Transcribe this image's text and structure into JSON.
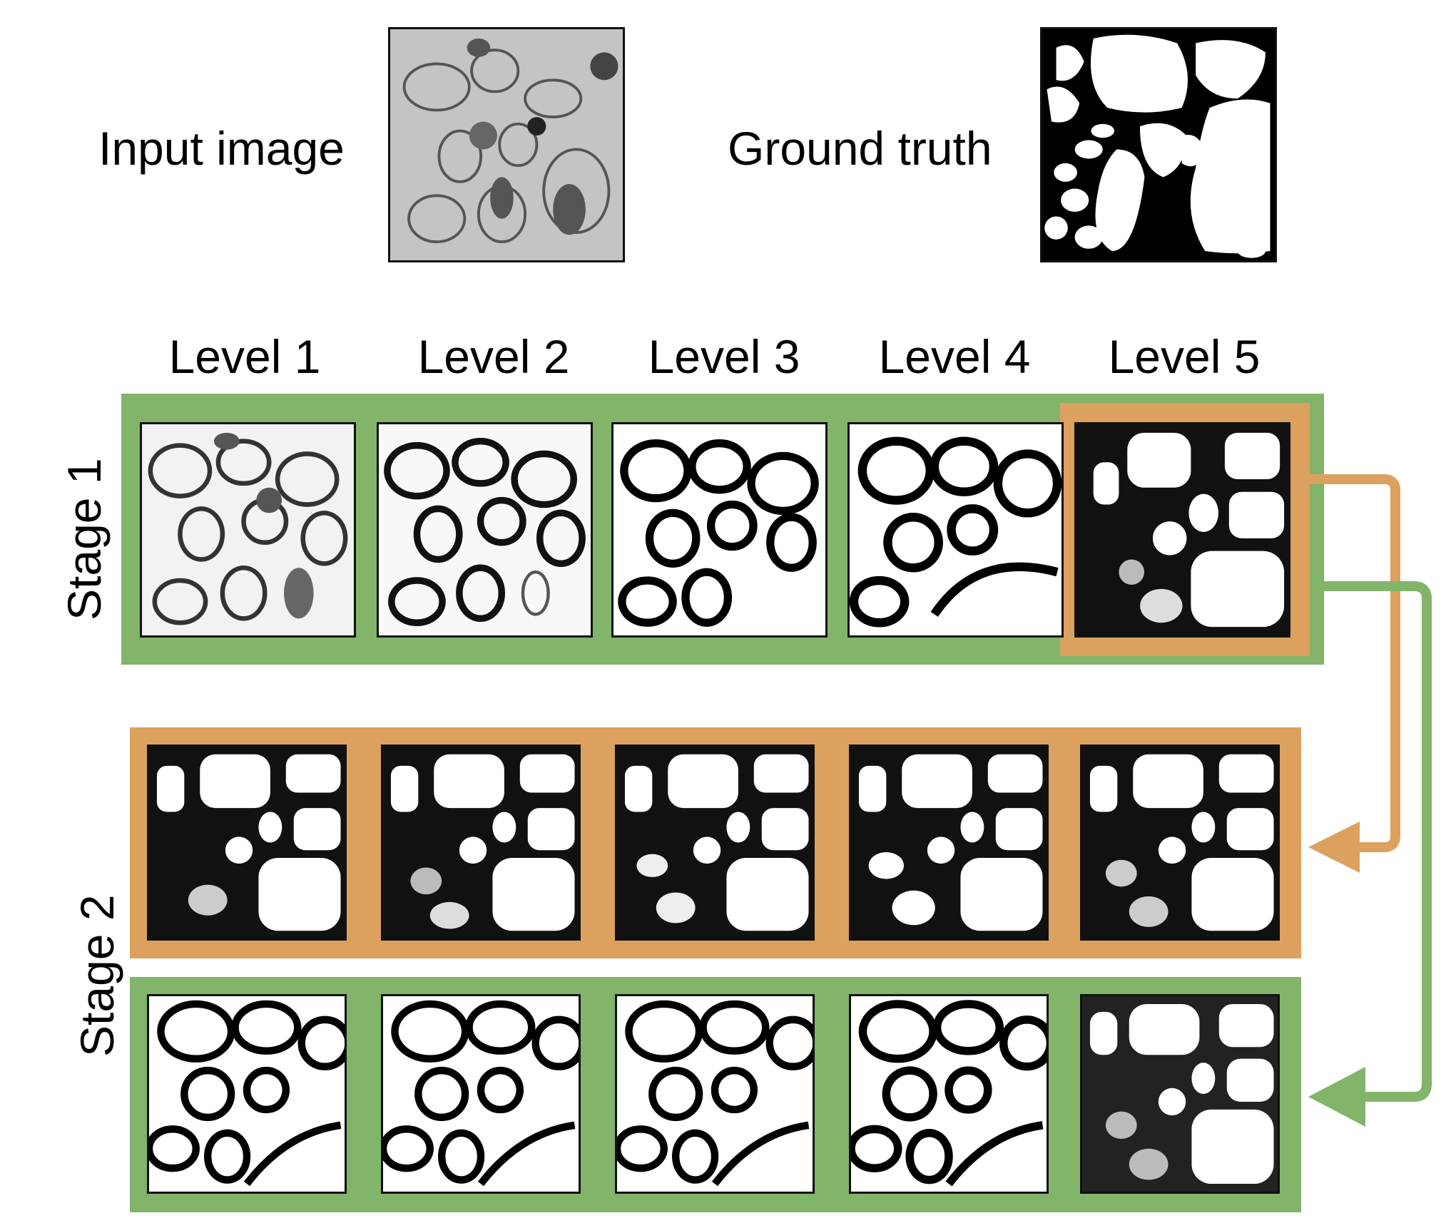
{
  "header": {
    "input_label": "Input image",
    "truth_label": "Ground truth"
  },
  "levels": [
    "Level 1",
    "Level 2",
    "Level 3",
    "Level 4",
    "Level 5"
  ],
  "stages": {
    "stage1_label": "Stage 1",
    "stage2_label": "Stage 2"
  },
  "colors": {
    "stage1_frame": "#82b46a",
    "stage2_orange": "#dca15e",
    "stage2_green": "#82b46a"
  }
}
